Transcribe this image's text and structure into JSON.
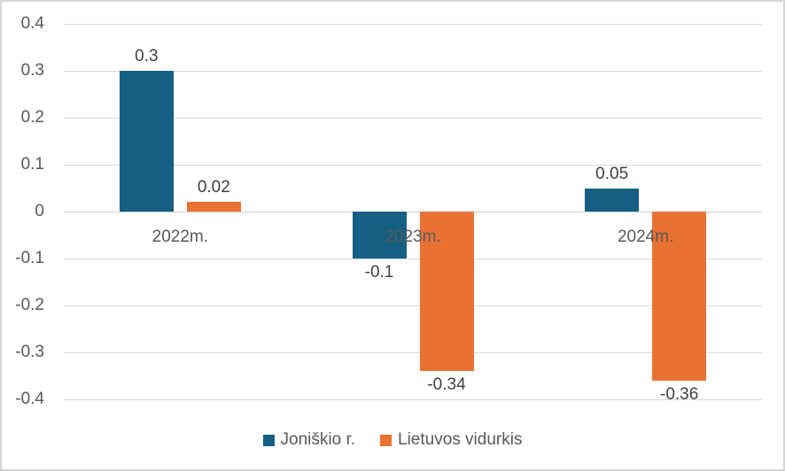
{
  "chart_data": {
    "type": "bar",
    "categories": [
      "2022m.",
      "2023m.",
      "2024m."
    ],
    "series": [
      {
        "name": "Joniškio r.",
        "color": "#156082",
        "values": [
          0.3,
          -0.1,
          0.05
        ],
        "labels": [
          "0.3",
          "-0.1",
          "0.05"
        ]
      },
      {
        "name": "Lietuvos vidurkis",
        "color": "#E97132",
        "values": [
          0.02,
          -0.34,
          -0.36
        ],
        "labels": [
          "0.02",
          "-0.34",
          "-0.36"
        ]
      }
    ],
    "title": "",
    "xlabel": "",
    "ylabel": "",
    "ylim": [
      -0.4,
      0.4
    ],
    "ytick_step": 0.1,
    "yticks": [
      "0.4",
      "0.3",
      "0.2",
      "0.1",
      "0",
      "-0.1",
      "-0.2",
      "-0.3",
      "-0.4"
    ],
    "grid": true,
    "legend_position": "bottom"
  },
  "colors": {
    "background": "#FFFFFF",
    "border": "#D6D4D4",
    "gridline": "#D9D9D9",
    "axis_text": "#595959",
    "data_label_text": "#404040",
    "category_text": "#595959",
    "legend_text": "#595959"
  }
}
